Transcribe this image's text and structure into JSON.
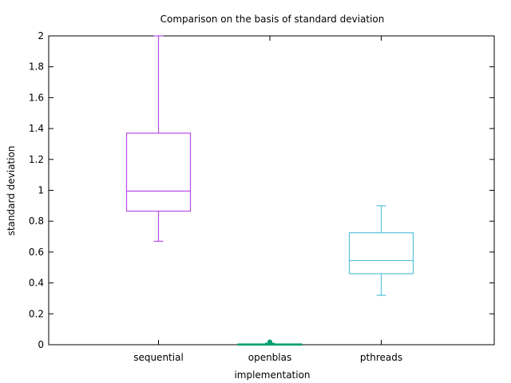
{
  "chart_data": {
    "type": "box",
    "title": "Comparison on the basis of standard deviation",
    "xlabel": "implementation",
    "ylabel": "standard deviation",
    "ylim": [
      0,
      2
    ],
    "yticks": [
      "0",
      "0.2",
      "0.4",
      "0.6",
      "0.8",
      "1",
      "1.2",
      "1.4",
      "1.6",
      "1.8",
      "2"
    ],
    "categories": [
      "sequential",
      "openblas",
      "pthreads"
    ],
    "series": [
      {
        "category": "sequential",
        "min": 0.67,
        "q1": 0.865,
        "median": 0.995,
        "q3": 1.37,
        "max": 2.0,
        "color": "#b94be8"
      },
      {
        "category": "openblas",
        "min": 0.0,
        "q1": 0.0,
        "median": 0.002,
        "q3": 0.005,
        "max": 0.01,
        "outliers": [
          0.018
        ],
        "color": "#009e73"
      },
      {
        "category": "pthreads",
        "min": 0.32,
        "q1": 0.46,
        "median": 0.545,
        "q3": 0.725,
        "max": 0.9,
        "color": "#56c3dc"
      }
    ],
    "grid": false,
    "legend": "none"
  }
}
